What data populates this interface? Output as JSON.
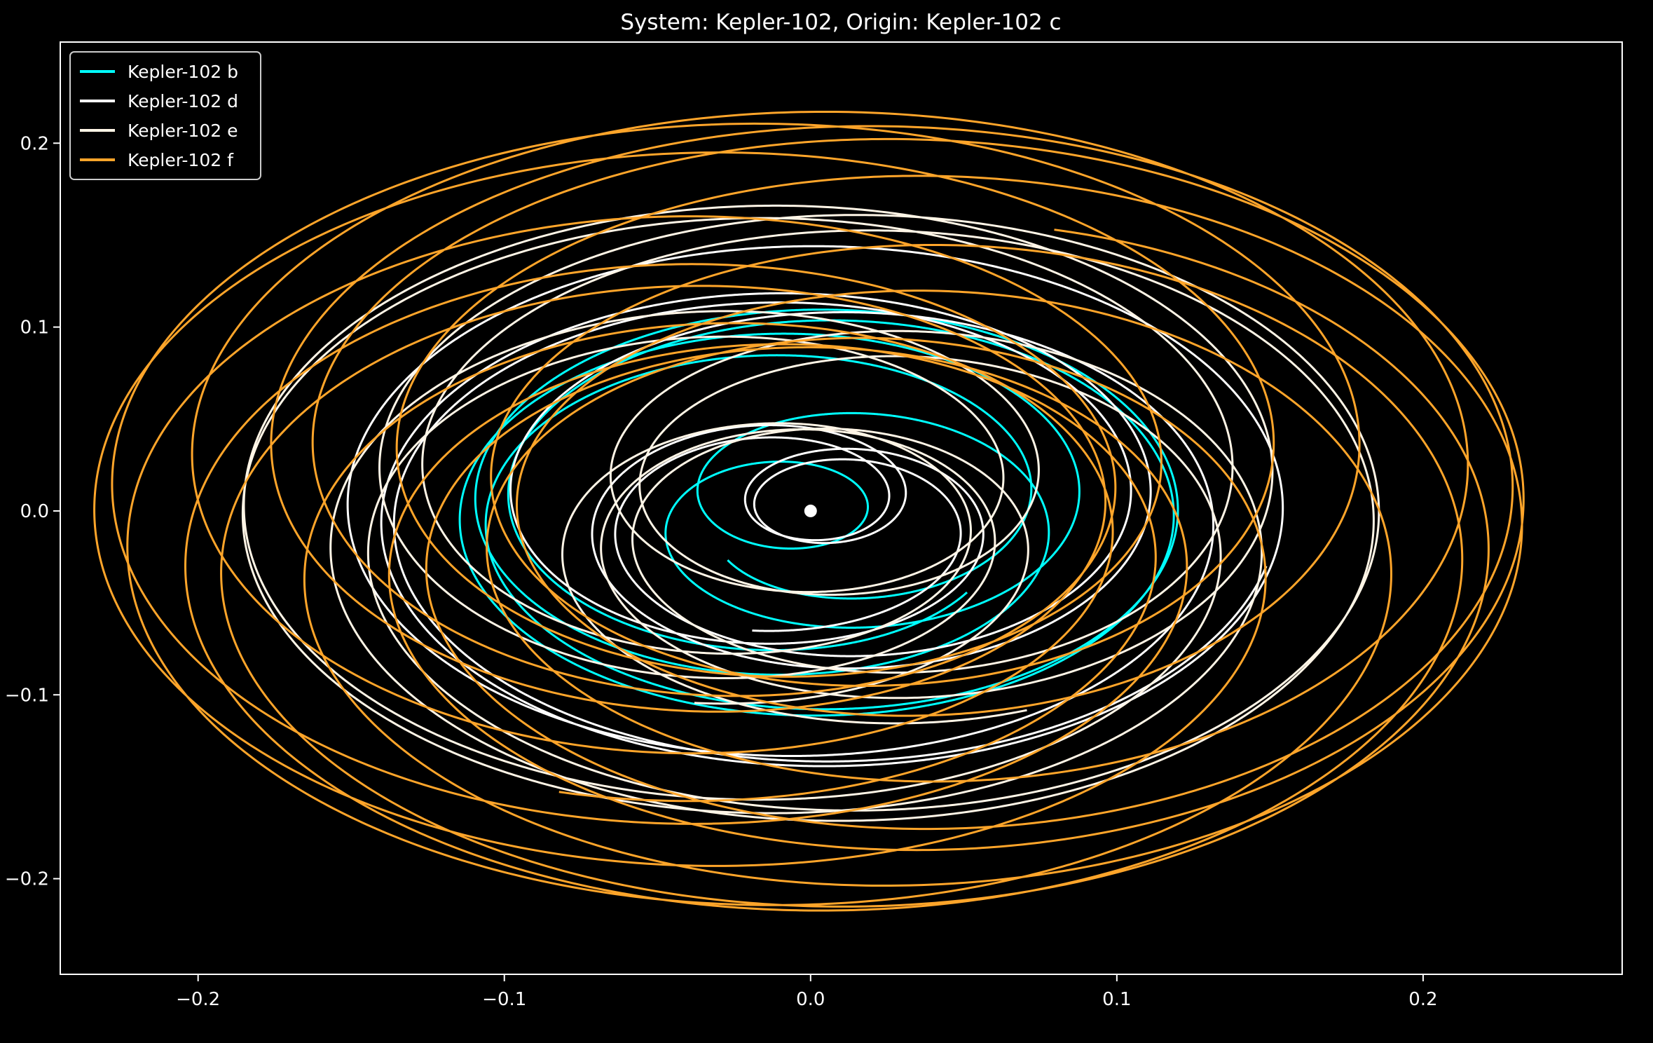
{
  "chart_data": {
    "type": "line",
    "title": "System: Kepler-102, Origin: Kepler-102 c",
    "xlabel": "",
    "ylabel": "",
    "xlim": [
      -0.245,
      0.265
    ],
    "ylim": [
      -0.252,
      0.255
    ],
    "xticks": [
      {
        "value": -0.2,
        "label": "−0.2"
      },
      {
        "value": -0.1,
        "label": "−0.1"
      },
      {
        "value": 0.0,
        "label": "0.0"
      },
      {
        "value": 0.1,
        "label": "0.1"
      },
      {
        "value": 0.2,
        "label": "0.2"
      }
    ],
    "yticks": [
      {
        "value": 0.2,
        "label": "0.2"
      },
      {
        "value": 0.1,
        "label": "0.1"
      },
      {
        "value": 0.0,
        "label": "0.0"
      },
      {
        "value": -0.1,
        "label": "−0.1"
      },
      {
        "value": -0.2,
        "label": "−0.2"
      }
    ],
    "grid": false,
    "legend_position": "top-left",
    "background": "#000000",
    "origin_marker": {
      "x": 0.0,
      "y": 0.0,
      "color": "#ffffff"
    },
    "series": [
      {
        "name": "Kepler-102 b",
        "color": "#00ffff",
        "orbit_radius": 0.0509,
        "carrier_radius": 0.0691,
        "loop_ratio": 0.7366,
        "carrier_cycles": 6.5,
        "y_scale": 0.93
      },
      {
        "name": "Kepler-102 d",
        "color": "#ffffff",
        "orbit_radius": 0.086,
        "carrier_radius": 0.0691,
        "loop_ratio": 1.2446,
        "carrier_cycles": 6.5,
        "y_scale": 0.93
      },
      {
        "name": "Kepler-102 e",
        "color": "#fff5e6",
        "orbit_radius": 0.1165,
        "carrier_radius": 0.0691,
        "loop_ratio": 1.686,
        "carrier_cycles": 6.5,
        "y_scale": 0.93
      },
      {
        "name": "Kepler-102 f",
        "color": "#ffa52a",
        "orbit_radius": 0.1648,
        "carrier_radius": 0.0691,
        "loop_ratio": 2.385,
        "carrier_cycles": 6.5,
        "y_scale": 0.93
      }
    ]
  }
}
